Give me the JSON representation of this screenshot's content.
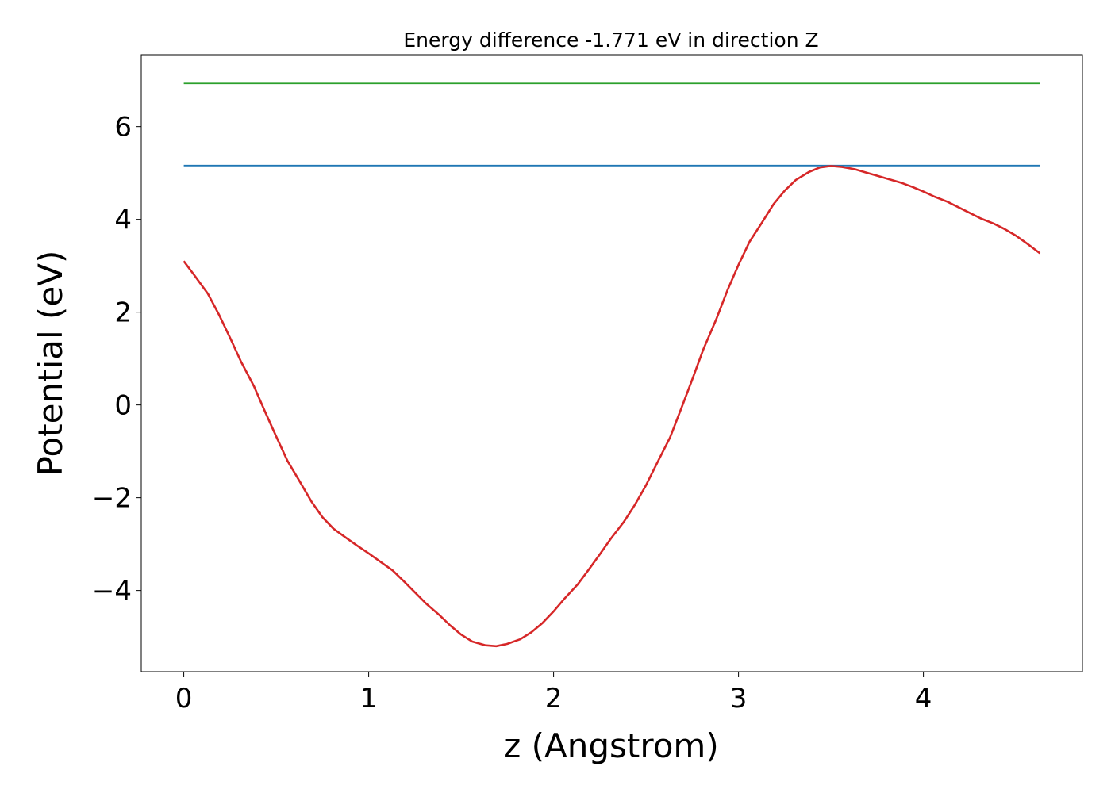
{
  "chart_data": {
    "type": "line",
    "title": "Energy difference -1.771 eV in direction Z",
    "xlabel": "z (Angstrom)",
    "ylabel": "Potential (eV)",
    "xlim": [
      -0.23,
      4.86
    ],
    "ylim": [
      -5.75,
      7.55
    ],
    "x_ticks": [
      0,
      1,
      2,
      3,
      4
    ],
    "x_tick_labels": [
      "0",
      "1",
      "2",
      "3",
      "4"
    ],
    "y_ticks": [
      -4,
      -2,
      0,
      2,
      4,
      6
    ],
    "y_tick_labels": [
      "−4",
      "−2",
      "0",
      "2",
      "4",
      "6"
    ],
    "grid": false,
    "series": [
      {
        "color": "#1f77b4",
        "x": [
          0,
          4.63
        ],
        "y": [
          5.16,
          5.16
        ]
      },
      {
        "color": "#2ca02c",
        "x": [
          0,
          4.63
        ],
        "y": [
          6.93,
          6.93
        ]
      },
      {
        "color": "#d62728",
        "x": [
          0,
          0.06,
          0.13,
          0.19,
          0.25,
          0.31,
          0.38,
          0.44,
          0.5,
          0.56,
          0.63,
          0.69,
          0.75,
          0.81,
          0.88,
          0.94,
          1.0,
          1.06,
          1.13,
          1.19,
          1.25,
          1.31,
          1.38,
          1.44,
          1.5,
          1.56,
          1.63,
          1.69,
          1.75,
          1.82,
          1.88,
          1.94,
          2.0,
          2.06,
          2.13,
          2.19,
          2.25,
          2.31,
          2.38,
          2.44,
          2.5,
          2.56,
          2.63,
          2.69,
          2.75,
          2.81,
          2.88,
          2.94,
          3.0,
          3.06,
          3.13,
          3.19,
          3.25,
          3.31,
          3.38,
          3.44,
          3.5,
          3.56,
          3.63,
          3.69,
          3.75,
          3.81,
          3.88,
          3.94,
          4.0,
          4.06,
          4.13,
          4.19,
          4.25,
          4.31,
          4.38,
          4.44,
          4.5,
          4.56,
          4.63
        ],
        "y": [
          3.1,
          2.78,
          2.4,
          1.95,
          1.45,
          0.93,
          0.4,
          -0.15,
          -0.68,
          -1.2,
          -1.67,
          -2.08,
          -2.42,
          -2.67,
          -2.87,
          -3.04,
          -3.2,
          -3.37,
          -3.57,
          -3.8,
          -4.04,
          -4.28,
          -4.52,
          -4.75,
          -4.95,
          -5.1,
          -5.18,
          -5.2,
          -5.15,
          -5.05,
          -4.9,
          -4.7,
          -4.45,
          -4.17,
          -3.87,
          -3.55,
          -3.22,
          -2.88,
          -2.52,
          -2.15,
          -1.73,
          -1.25,
          -0.7,
          -0.08,
          0.55,
          1.2,
          1.85,
          2.47,
          3.02,
          3.52,
          3.95,
          4.33,
          4.62,
          4.85,
          5.02,
          5.12,
          5.15,
          5.13,
          5.08,
          5.01,
          4.94,
          4.87,
          4.79,
          4.7,
          4.6,
          4.49,
          4.38,
          4.26,
          4.14,
          4.02,
          3.91,
          3.79,
          3.65,
          3.48,
          3.27
        ]
      }
    ]
  }
}
